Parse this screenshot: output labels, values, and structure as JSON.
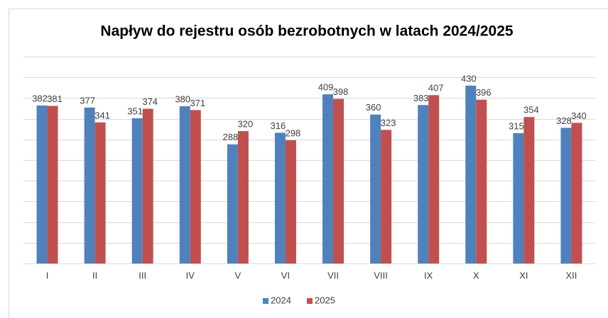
{
  "chart_data": {
    "type": "bar",
    "title": "Napływ do rejestru osób bezrobotnych w latach 2024/2025",
    "categories": [
      "I",
      "II",
      "III",
      "IV",
      "V",
      "VI",
      "VII",
      "VIII",
      "IX",
      "X",
      "XI",
      "XII"
    ],
    "series": [
      {
        "name": "2024",
        "color": "#4f81bd",
        "values": [
          382,
          377,
          351,
          380,
          288,
          316,
          409,
          360,
          383,
          430,
          315,
          328
        ]
      },
      {
        "name": "2025",
        "color": "#c0504d",
        "values": [
          381,
          341,
          374,
          371,
          320,
          298,
          398,
          323,
          407,
          396,
          354,
          340
        ]
      }
    ],
    "ylim": [
      0,
      500
    ],
    "yticks": [
      0,
      50,
      100,
      150,
      200,
      250,
      300,
      350,
      400,
      450,
      500
    ],
    "grid": true,
    "legend": "bottom"
  }
}
